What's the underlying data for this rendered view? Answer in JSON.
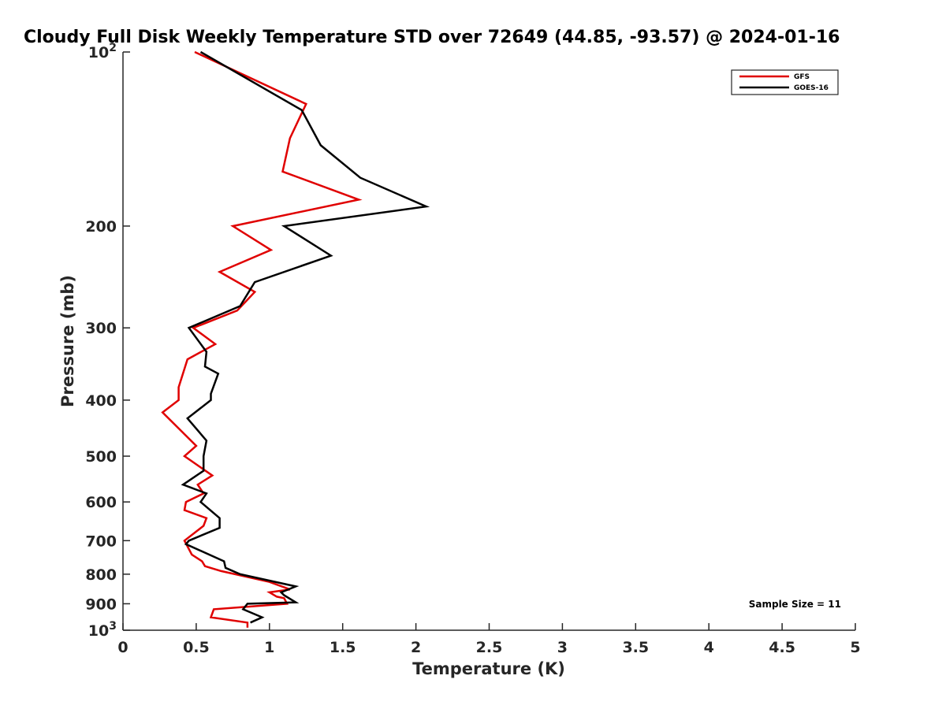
{
  "chart_data": {
    "type": "line",
    "title": "Cloudy Full Disk Weekly Temperature STD over 72649 (44.85, -93.57) @ 2024-01-16",
    "xlabel": "Temperature (K)",
    "ylabel": "Pressure (mb)",
    "xlim": [
      0,
      5
    ],
    "ylim": [
      100,
      1000
    ],
    "y_scale": "log",
    "y_reversed": true,
    "grid": false,
    "legend_position": "top-right",
    "x_ticks": [
      "0",
      "0.5",
      "1",
      "1.5",
      "2",
      "2.5",
      "3",
      "3.5",
      "4",
      "4.5",
      "5"
    ],
    "y_ticks": [
      {
        "value": 100,
        "base": "10",
        "exp": "2"
      },
      {
        "value": 200,
        "label": "200"
      },
      {
        "value": 300,
        "label": "300"
      },
      {
        "value": 400,
        "label": "400"
      },
      {
        "value": 500,
        "label": "500"
      },
      {
        "value": 600,
        "label": "600"
      },
      {
        "value": 700,
        "label": "700"
      },
      {
        "value": 800,
        "label": "800"
      },
      {
        "value": 900,
        "label": "900"
      },
      {
        "value": 1000,
        "base": "10",
        "exp": "3"
      }
    ],
    "series": [
      {
        "name": "GFS",
        "color": "#e00000",
        "points": [
          [
            0.49,
            100
          ],
          [
            1.25,
            123
          ],
          [
            1.14,
            141
          ],
          [
            1.09,
            161
          ],
          [
            1.61,
            180
          ],
          [
            0.75,
            200
          ],
          [
            1.01,
            220
          ],
          [
            0.66,
            240
          ],
          [
            0.9,
            260
          ],
          [
            0.78,
            280
          ],
          [
            0.48,
            300
          ],
          [
            0.63,
            320
          ],
          [
            0.44,
            340
          ],
          [
            0.38,
            380
          ],
          [
            0.38,
            400
          ],
          [
            0.27,
            420
          ],
          [
            0.5,
            480
          ],
          [
            0.42,
            500
          ],
          [
            0.61,
            540
          ],
          [
            0.51,
            560
          ],
          [
            0.55,
            580
          ],
          [
            0.43,
            600
          ],
          [
            0.42,
            620
          ],
          [
            0.57,
            640
          ],
          [
            0.55,
            660
          ],
          [
            0.42,
            700
          ],
          [
            0.47,
            740
          ],
          [
            0.54,
            760
          ],
          [
            0.56,
            775
          ],
          [
            0.67,
            790
          ],
          [
            1.0,
            825
          ],
          [
            1.14,
            850
          ],
          [
            1.0,
            860
          ],
          [
            1.05,
            875
          ],
          [
            1.1,
            880
          ],
          [
            1.12,
            900
          ],
          [
            0.62,
            920
          ],
          [
            0.6,
            950
          ],
          [
            0.85,
            970
          ],
          [
            0.85,
            990
          ]
        ]
      },
      {
        "name": "GOES-16",
        "color": "#000000",
        "points": [
          [
            0.53,
            100
          ],
          [
            1.22,
            126
          ],
          [
            1.35,
            145
          ],
          [
            1.62,
            165
          ],
          [
            2.07,
            185
          ],
          [
            1.1,
            200
          ],
          [
            1.42,
            225
          ],
          [
            0.9,
            250
          ],
          [
            0.8,
            275
          ],
          [
            0.45,
            300
          ],
          [
            0.57,
            330
          ],
          [
            0.56,
            350
          ],
          [
            0.65,
            360
          ],
          [
            0.6,
            390
          ],
          [
            0.6,
            400
          ],
          [
            0.44,
            430
          ],
          [
            0.57,
            470
          ],
          [
            0.55,
            500
          ],
          [
            0.55,
            530
          ],
          [
            0.41,
            560
          ],
          [
            0.57,
            580
          ],
          [
            0.53,
            600
          ],
          [
            0.66,
            640
          ],
          [
            0.66,
            665
          ],
          [
            0.45,
            700
          ],
          [
            0.43,
            710
          ],
          [
            0.69,
            760
          ],
          [
            0.7,
            780
          ],
          [
            0.8,
            800
          ],
          [
            1.18,
            840
          ],
          [
            1.08,
            860
          ],
          [
            1.1,
            870
          ],
          [
            1.18,
            895
          ],
          [
            0.85,
            900
          ],
          [
            0.82,
            920
          ],
          [
            0.95,
            950
          ],
          [
            0.87,
            970
          ]
        ]
      }
    ],
    "annotation": "Sample Size = 11"
  }
}
